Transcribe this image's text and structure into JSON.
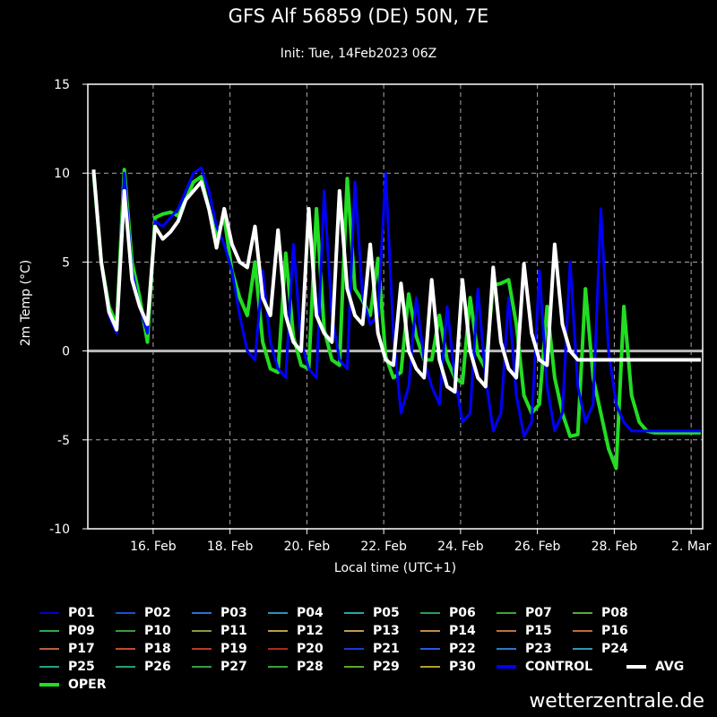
{
  "header": {
    "title": "GFS Alf 56859 (DE) 50N, 7E",
    "subtitle": "Init: Tue, 14Feb2023 06Z"
  },
  "footer": {
    "credit": "wetterzentrale.de"
  },
  "colors": {
    "background": "#000000",
    "oper": "#22dd22",
    "control": "#0000ff",
    "avg": "#ffffff",
    "grid": "#aaaaaa"
  },
  "chart_data": {
    "type": "line",
    "title": "GFS Alf 56859 (DE) 50N, 7E",
    "subtitle": "Init: Tue, 14Feb2023 06Z",
    "xlabel": "Local time (UTC+1)",
    "ylabel": "2m Temp (°C)",
    "x_unit": "days since 2023-02-14 07:00 local",
    "xlim": [
      0,
      16
    ],
    "ylim": [
      -10,
      15
    ],
    "yticks": [
      -10,
      -5,
      0,
      5,
      10,
      15
    ],
    "xticks": [
      {
        "label": "16. Feb",
        "x": 1.7
      },
      {
        "label": "18. Feb",
        "x": 3.7
      },
      {
        "label": "20. Feb",
        "x": 5.7
      },
      {
        "label": "22. Feb",
        "x": 7.7
      },
      {
        "label": "24. Feb",
        "x": 9.7
      },
      {
        "label": "26. Feb",
        "x": 11.7
      },
      {
        "label": "28. Feb",
        "x": 13.7
      },
      {
        "label": "2. Mar",
        "x": 15.7
      }
    ],
    "grid": true,
    "legend_position": "bottom",
    "series": [
      {
        "name": "OPER",
        "color": "#22dd22",
        "width": 4,
        "x": [
          0.15,
          0.35,
          0.55,
          0.75,
          0.95,
          1.15,
          1.35,
          1.55,
          1.75,
          1.95,
          2.15,
          2.35,
          2.55,
          2.75,
          2.95,
          3.15,
          3.35,
          3.55,
          3.75,
          3.95,
          4.15,
          4.35,
          4.55,
          4.75,
          4.95,
          5.15,
          5.35,
          5.55,
          5.75,
          5.95,
          6.15,
          6.35,
          6.55,
          6.75,
          6.95,
          7.15,
          7.35,
          7.55,
          7.75,
          7.95,
          8.15,
          8.35,
          8.55,
          8.75,
          8.95,
          9.15,
          9.35,
          9.55,
          9.75,
          9.95,
          10.15,
          10.35,
          10.55,
          10.75,
          10.95,
          11.15,
          11.35,
          11.55,
          11.75,
          11.95,
          12.15,
          12.35,
          12.55,
          12.75,
          12.95,
          13.15,
          13.35,
          13.55,
          13.75,
          13.95,
          14.15,
          14.35,
          14.55,
          14.75,
          14.95,
          15.15,
          15.35,
          15.55,
          15.75,
          15.95
        ],
        "y": [
          10.0,
          5.0,
          2.5,
          1.5,
          10.2,
          5.0,
          3.0,
          0.5,
          7.5,
          7.7,
          7.8,
          7.6,
          8.5,
          9.5,
          9.8,
          8.0,
          6.5,
          7.5,
          4.5,
          3.0,
          2.0,
          5.0,
          0.5,
          -1.0,
          -1.2,
          5.5,
          0.8,
          -0.8,
          -1.0,
          8.0,
          1.2,
          -0.5,
          -0.8,
          9.7,
          3.5,
          2.8,
          2.0,
          5.2,
          -0.3,
          -1.5,
          -1.2,
          3.2,
          0.8,
          -0.5,
          -0.5,
          2.0,
          -0.5,
          -1.5,
          -1.8,
          3.0,
          -0.2,
          -1.0,
          3.7,
          3.8,
          4.0,
          1.5,
          -2.5,
          -3.5,
          -3.0,
          2.5,
          -1.5,
          -3.5,
          -4.8,
          -4.7,
          3.5,
          -1.5,
          -3.5,
          -5.5,
          -6.6,
          2.5,
          -2.5,
          -4.0,
          -4.5,
          -4.6,
          -4.6,
          -4.6,
          -4.6,
          -4.6,
          -4.6,
          -4.6
        ]
      },
      {
        "name": "CONTROL",
        "color": "#0000ff",
        "width": 3,
        "x": [
          0.15,
          0.35,
          0.55,
          0.75,
          0.95,
          1.15,
          1.35,
          1.55,
          1.75,
          1.95,
          2.15,
          2.35,
          2.55,
          2.75,
          2.95,
          3.15,
          3.35,
          3.55,
          3.75,
          3.95,
          4.15,
          4.35,
          4.55,
          4.75,
          4.95,
          5.15,
          5.35,
          5.55,
          5.75,
          5.95,
          6.15,
          6.35,
          6.55,
          6.75,
          6.95,
          7.15,
          7.35,
          7.55,
          7.75,
          7.95,
          8.15,
          8.35,
          8.55,
          8.75,
          8.95,
          9.15,
          9.35,
          9.55,
          9.75,
          9.95,
          10.15,
          10.35,
          10.55,
          10.75,
          10.95,
          11.15,
          11.35,
          11.55,
          11.75,
          11.95,
          12.15,
          12.35,
          12.55,
          12.75,
          12.95,
          13.15,
          13.35,
          13.55,
          13.75,
          13.95,
          14.15,
          14.35,
          14.55,
          14.75,
          14.95,
          15.15,
          15.35,
          15.55,
          15.75,
          15.95
        ],
        "y": [
          10.0,
          5.0,
          2.0,
          1.0,
          10.0,
          4.5,
          2.5,
          1.0,
          7.3,
          7.0,
          7.5,
          8.0,
          9.0,
          10.0,
          10.3,
          9.0,
          7.0,
          6.0,
          4.5,
          2.0,
          0.0,
          -0.5,
          4.5,
          0.5,
          -1.0,
          -1.5,
          6.0,
          0.5,
          -1.0,
          -1.5,
          9.0,
          2.0,
          -0.5,
          -1.0,
          9.5,
          3.0,
          1.5,
          2.0,
          10.0,
          1.0,
          -3.5,
          -2.0,
          3.0,
          -0.5,
          -2.0,
          -3.0,
          2.5,
          -1.5,
          -4.0,
          -3.5,
          3.5,
          -1.5,
          -4.5,
          -3.5,
          3.0,
          -2.5,
          -4.8,
          -4.0,
          4.5,
          -2.0,
          -4.5,
          -3.5,
          5.0,
          -2.0,
          -4.0,
          -3.0,
          8.0,
          0.0,
          -3.0,
          -4.0,
          -4.5,
          -4.5,
          -4.5,
          -4.5,
          -4.5,
          -4.5,
          -4.5,
          -4.5,
          -4.5,
          -4.5
        ]
      },
      {
        "name": "AVG",
        "color": "#ffffff",
        "width": 4,
        "x": [
          0.15,
          0.35,
          0.55,
          0.75,
          0.95,
          1.15,
          1.35,
          1.55,
          1.75,
          1.95,
          2.15,
          2.35,
          2.55,
          2.75,
          2.95,
          3.15,
          3.35,
          3.55,
          3.75,
          3.95,
          4.15,
          4.35,
          4.55,
          4.75,
          4.95,
          5.15,
          5.35,
          5.55,
          5.75,
          5.95,
          6.15,
          6.35,
          6.55,
          6.75,
          6.95,
          7.15,
          7.35,
          7.55,
          7.75,
          7.95,
          8.15,
          8.35,
          8.55,
          8.75,
          8.95,
          9.15,
          9.35,
          9.55,
          9.75,
          9.95,
          10.15,
          10.35,
          10.55,
          10.75,
          10.95,
          11.15,
          11.35,
          11.55,
          11.75,
          11.95,
          12.15,
          12.35,
          12.55,
          12.75,
          12.95,
          13.15,
          13.35,
          13.55,
          13.75,
          13.95,
          14.15,
          14.35,
          14.55,
          14.75,
          14.95,
          15.15,
          15.35,
          15.55,
          15.75,
          15.95
        ],
        "y": [
          10.2,
          5.0,
          2.2,
          1.2,
          9.0,
          4.0,
          2.5,
          1.5,
          7.0,
          6.3,
          6.7,
          7.3,
          8.5,
          9.0,
          9.5,
          8.0,
          5.8,
          8.0,
          6.0,
          5.0,
          4.7,
          7.0,
          3.0,
          2.0,
          6.8,
          2.0,
          0.5,
          0.0,
          8.0,
          2.0,
          1.0,
          0.5,
          9.0,
          3.5,
          2.0,
          1.5,
          6.0,
          1.0,
          -0.5,
          -0.8,
          3.8,
          0.0,
          -1.0,
          -1.5,
          4.0,
          -0.5,
          -2.0,
          -2.3,
          4.0,
          0.0,
          -1.5,
          -2.0,
          4.7,
          0.5,
          -1.0,
          -1.5,
          4.9,
          1.0,
          -0.5,
          -0.8,
          6.0,
          1.5,
          0.0,
          -0.5,
          -0.5,
          -0.5,
          -0.5,
          -0.5,
          -0.5,
          -0.5,
          -0.5,
          -0.5,
          -0.5,
          -0.5,
          -0.5,
          -0.5,
          -0.5,
          -0.5,
          -0.5,
          -0.5
        ]
      }
    ]
  },
  "legend": {
    "items": [
      {
        "label": "P01",
        "color": "#0000cd"
      },
      {
        "label": "P02",
        "color": "#1a4fd6"
      },
      {
        "label": "P03",
        "color": "#2f6fd8"
      },
      {
        "label": "P04",
        "color": "#2f8fb8"
      },
      {
        "label": "P05",
        "color": "#2aa6a6"
      },
      {
        "label": "P06",
        "color": "#2e9a5a"
      },
      {
        "label": "P07",
        "color": "#3aa33a"
      },
      {
        "label": "P08",
        "color": "#5aa83a"
      },
      {
        "label": "P09",
        "color": "#2fa84f"
      },
      {
        "label": "P10",
        "color": "#3c9a3c"
      },
      {
        "label": "P11",
        "color": "#8a9a3a"
      },
      {
        "label": "P12",
        "color": "#b8a040"
      },
      {
        "label": "P13",
        "color": "#c09a50"
      },
      {
        "label": "P14",
        "color": "#c08a4a"
      },
      {
        "label": "P15",
        "color": "#c07040"
      },
      {
        "label": "P16",
        "color": "#c06a3a"
      },
      {
        "label": "P17",
        "color": "#b86040"
      },
      {
        "label": "P18",
        "color": "#c04a30"
      },
      {
        "label": "P19",
        "color": "#b83a28"
      },
      {
        "label": "P20",
        "color": "#a82a20"
      },
      {
        "label": "P21",
        "color": "#1a3ad0"
      },
      {
        "label": "P22",
        "color": "#2a5ad8"
      },
      {
        "label": "P23",
        "color": "#2a7ac8"
      },
      {
        "label": "P24",
        "color": "#2a9ab0"
      },
      {
        "label": "P25",
        "color": "#2aa08a"
      },
      {
        "label": "P26",
        "color": "#2aa070"
      },
      {
        "label": "P27",
        "color": "#3a9a4a"
      },
      {
        "label": "P28",
        "color": "#3aa03a"
      },
      {
        "label": "P29",
        "color": "#5aa82a"
      },
      {
        "label": "P30",
        "color": "#b0a030"
      },
      {
        "label": "CONTROL",
        "color": "#0000ff"
      },
      {
        "label": "AVG",
        "color": "#ffffff"
      },
      {
        "label": "OPER",
        "color": "#22dd22"
      }
    ]
  }
}
